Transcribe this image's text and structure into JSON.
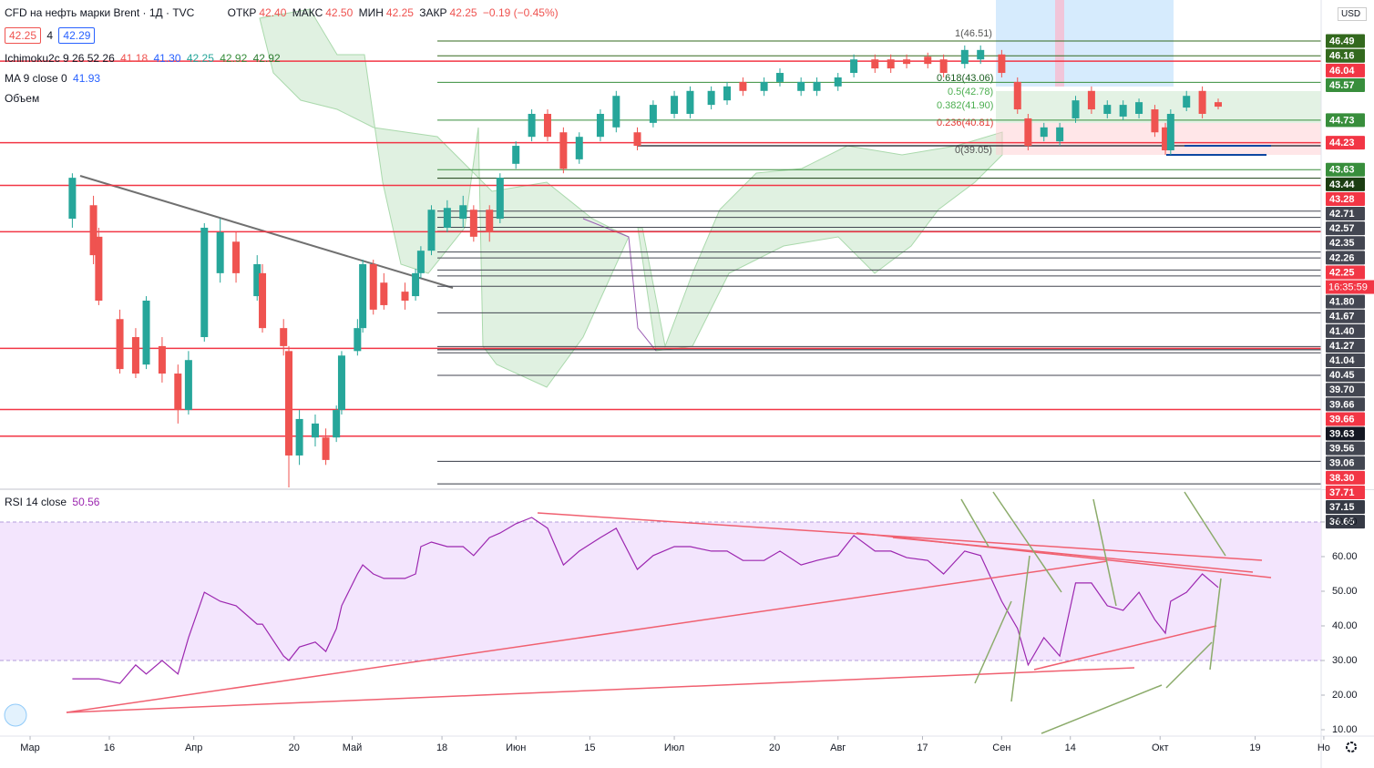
{
  "header": {
    "symbol": "CFD на нефть марки Brent · 1Д · TVC",
    "ohlc": [
      {
        "label": "ОТКР",
        "value": "42.40"
      },
      {
        "label": "МАКС",
        "value": "42.50"
      },
      {
        "label": "МИН",
        "value": "42.25"
      },
      {
        "label": "ЗАКР",
        "value": "42.25"
      }
    ],
    "change": "−0.19 (−0.45%)",
    "bid": "42.25",
    "spread": "4",
    "ask": "42.29"
  },
  "indicators": {
    "ichimoku": {
      "name": "Ichimoku2c 9 26 52 26",
      "values": [
        "41.18",
        "41.30",
        "42.25",
        "42.92",
        "42.92"
      ]
    },
    "ma": {
      "name": "MA 9 close 0",
      "value": "41.93"
    },
    "volume": "Объем",
    "rsi": {
      "name": "RSI 14 close",
      "value": "50.56"
    }
  },
  "currency": "USD",
  "fib_labels": [
    "1(46.51)",
    "0.618(43.06)",
    "0.5(42.78)",
    "0.382(41.90)",
    "0.236(40.81)",
    "0(39.05)"
  ],
  "chart_data": [
    {
      "type": "candlestick",
      "up_color": "#26a69a",
      "down_color": "#ef5350",
      "xlim": [
        -5.7,
        244.5
      ],
      "ylim": [
        36.53,
        47.4
      ],
      "xticks": [
        {
          "value": 0,
          "label": "Мар"
        },
        {
          "value": 15,
          "label": "16"
        },
        {
          "value": 31,
          "label": "Апр"
        },
        {
          "value": 50,
          "label": "20"
        },
        {
          "value": 61,
          "label": "Май"
        },
        {
          "value": 78,
          "label": "18"
        },
        {
          "value": 92,
          "label": "Июн"
        },
        {
          "value": 106,
          "label": "15"
        },
        {
          "value": 122,
          "label": "Июл"
        },
        {
          "value": 141,
          "label": "20"
        },
        {
          "value": 153,
          "label": "Авг"
        },
        {
          "value": 169,
          "label": "17"
        },
        {
          "value": 184,
          "label": "Сен"
        },
        {
          "value": 197,
          "label": "14"
        },
        {
          "value": 214,
          "label": "Окт"
        },
        {
          "value": 232,
          "label": "19"
        },
        {
          "value": 245,
          "label": "Но"
        }
      ],
      "x": [
        8,
        12,
        13,
        17,
        20,
        22,
        25,
        28,
        30,
        33,
        36,
        39,
        43,
        44,
        48,
        49,
        51,
        54,
        56,
        58,
        59,
        62,
        63,
        65,
        67,
        71,
        73,
        74,
        76,
        79,
        82,
        84,
        87,
        89,
        92,
        95,
        98,
        101,
        104,
        108,
        111,
        115,
        118,
        122,
        125,
        129,
        132,
        135,
        139,
        142,
        146,
        149,
        153,
        156,
        160,
        163,
        166,
        170,
        173,
        177,
        180,
        184,
        187,
        189,
        192,
        195,
        198,
        201,
        204,
        207,
        210,
        213,
        215,
        216,
        219,
        222,
        225
      ],
      "open": [
        42.54,
        42.84,
        42.14,
        40.31,
        39.91,
        39.3,
        39.71,
        39.1,
        38.29,
        39.91,
        41.33,
        42.03,
        40.82,
        41.33,
        40.11,
        39.6,
        37.28,
        37.68,
        37.68,
        37.68,
        38.29,
        39.6,
        40.11,
        41.53,
        41.12,
        40.92,
        40.82,
        41.33,
        41.83,
        42.34,
        42.54,
        42.74,
        42.74,
        42.54,
        43.76,
        44.36,
        44.87,
        44.46,
        43.86,
        44.36,
        44.57,
        44.46,
        44.67,
        44.87,
        44.87,
        45.07,
        45.17,
        45.58,
        45.38,
        45.58,
        45.38,
        45.38,
        45.48,
        45.78,
        46.08,
        46.08,
        46.08,
        46.14,
        46.08,
        45.98,
        46.08,
        46.19,
        45.58,
        44.77,
        44.36,
        44.26,
        44.77,
        45.38,
        44.87,
        44.81,
        44.87,
        44.97,
        44.57,
        44.06,
        45.01,
        45.38,
        45.13
      ],
      "high": [
        43.55,
        43.05,
        42.34,
        40.52,
        40.11,
        40.82,
        39.91,
        39.3,
        39.6,
        42.44,
        42.54,
        42.24,
        41.73,
        41.53,
        40.31,
        39.71,
        38.29,
        38.19,
        37.88,
        38.39,
        39.6,
        40.31,
        41.63,
        41.63,
        41.33,
        41.12,
        41.43,
        41.93,
        42.84,
        42.95,
        43.05,
        42.84,
        42.84,
        43.55,
        44.26,
        44.97,
        44.97,
        44.57,
        44.46,
        44.97,
        45.38,
        44.57,
        45.17,
        45.38,
        45.48,
        45.48,
        45.58,
        45.68,
        45.68,
        45.88,
        45.68,
        45.68,
        45.78,
        46.19,
        46.19,
        46.19,
        46.19,
        46.23,
        46.19,
        46.39,
        46.39,
        46.29,
        45.68,
        44.87,
        44.67,
        44.67,
        45.27,
        45.48,
        45.17,
        45.17,
        45.21,
        45.07,
        44.67,
        44.97,
        45.38,
        45.48,
        45.21
      ],
      "low": [
        42.34,
        41.53,
        40.62,
        39.1,
        39.0,
        39.2,
        38.9,
        37.99,
        38.19,
        39.81,
        41.12,
        41.12,
        40.72,
        40.01,
        39.5,
        36.57,
        37.07,
        37.48,
        37.07,
        37.58,
        38.19,
        39.5,
        40.01,
        40.41,
        40.52,
        40.52,
        40.72,
        41.22,
        41.73,
        42.24,
        42.34,
        42.03,
        42.03,
        42.44,
        43.65,
        44.26,
        44.26,
        43.55,
        43.76,
        44.26,
        44.46,
        44.06,
        44.57,
        44.77,
        44.77,
        44.97,
        45.07,
        45.27,
        45.27,
        45.48,
        45.27,
        45.27,
        45.38,
        45.68,
        45.78,
        45.78,
        45.88,
        45.88,
        45.68,
        45.88,
        45.98,
        45.68,
        44.87,
        44.06,
        44.26,
        44.16,
        44.67,
        44.87,
        44.77,
        44.73,
        44.77,
        44.36,
        43.96,
        43.96,
        44.93,
        44.77,
        44.97
      ],
      "close": [
        43.45,
        41.73,
        40.72,
        39.2,
        39.1,
        40.72,
        39.1,
        38.29,
        39.4,
        42.34,
        42.24,
        41.33,
        41.53,
        40.11,
        39.71,
        37.28,
        38.09,
        37.99,
        37.18,
        38.29,
        39.5,
        40.11,
        41.53,
        40.52,
        40.62,
        40.72,
        41.33,
        41.83,
        42.74,
        42.78,
        42.84,
        42.14,
        42.24,
        43.45,
        44.16,
        44.87,
        44.36,
        43.65,
        44.36,
        44.87,
        45.27,
        44.16,
        45.07,
        45.27,
        45.38,
        45.38,
        45.48,
        45.38,
        45.58,
        45.78,
        45.58,
        45.58,
        45.68,
        46.08,
        45.88,
        45.88,
        45.98,
        45.98,
        45.78,
        46.29,
        46.29,
        45.78,
        44.97,
        44.16,
        44.57,
        44.57,
        45.17,
        44.97,
        45.07,
        45.07,
        45.13,
        44.46,
        44.06,
        44.87,
        45.27,
        44.87,
        45.03
      ],
      "levels": [
        {
          "value": 46.49,
          "label": "46.49",
          "color": "#33691e"
        },
        {
          "value": 46.16,
          "label": "46.16",
          "color": "#33691e"
        },
        {
          "value": 46.04,
          "label": "46.04",
          "color": "#f23645"
        },
        {
          "value": 45.57,
          "label": "45.57",
          "color": "#388e3c"
        },
        {
          "value": 44.73,
          "label": "44.73",
          "color": "#388e3c"
        },
        {
          "value": 44.23,
          "label": "44.23",
          "color": "#f23645"
        },
        {
          "value": 43.63,
          "label": "43.63",
          "color": "#388e3c"
        },
        {
          "value": 43.44,
          "label": "43.44",
          "color": "#1b3d12"
        },
        {
          "value": 43.28,
          "label": "43.28",
          "color": "#f23645"
        },
        {
          "value": 42.71,
          "label": "42.71",
          "color": "#434651"
        },
        {
          "value": 42.57,
          "label": "42.57",
          "color": "#434651"
        },
        {
          "value": 42.35,
          "label": "42.35",
          "color": "#434651"
        },
        {
          "value": 42.26,
          "label": "42.26",
          "color": "#434651"
        },
        {
          "value": 42.25,
          "label": "42.25",
          "color": "#f23645"
        },
        {
          "value": 41.8,
          "label": "41.80",
          "color": "#434651"
        },
        {
          "value": 41.67,
          "label": "41.67",
          "color": "#434651"
        },
        {
          "value": 41.4,
          "label": "41.40",
          "color": "#434651"
        },
        {
          "value": 41.27,
          "label": "41.27",
          "color": "#434651"
        },
        {
          "value": 41.04,
          "label": "41.04",
          "color": "#434651"
        },
        {
          "value": 40.45,
          "label": "40.45",
          "color": "#434651"
        },
        {
          "value": 39.7,
          "label": "39.70",
          "color": "#434651"
        },
        {
          "value": 39.66,
          "label": "39.66",
          "color": "#434651"
        },
        {
          "value": 39.66,
          "label": "39.66",
          "color": "#f23645"
        },
        {
          "value": 39.63,
          "label": "39.63",
          "color": "#131722"
        },
        {
          "value": 39.56,
          "label": "39.56",
          "color": "#434651"
        },
        {
          "value": 39.06,
          "label": "39.06",
          "color": "#434651"
        },
        {
          "value": 38.3,
          "label": "38.30",
          "color": "#f23645"
        },
        {
          "value": 37.71,
          "label": "37.71",
          "color": "#f23645"
        },
        {
          "value": 37.15,
          "label": "37.15",
          "color": "#363a45"
        },
        {
          "value": 36.65,
          "label": "36.65",
          "color": "#363a45"
        }
      ],
      "countdown": "16:35:59"
    },
    {
      "type": "line",
      "color": "#9c27b0",
      "band_color": "#f3e5fd",
      "ylim": [
        8.16,
        79.2
      ],
      "band": [
        30,
        70
      ],
      "yticks": [
        {
          "value": 70,
          "label": "70.00"
        },
        {
          "value": 60,
          "label": "60.00"
        },
        {
          "value": 50,
          "label": "50.00"
        },
        {
          "value": 40,
          "label": "40.00"
        },
        {
          "value": 30,
          "label": "30.00"
        },
        {
          "value": 20,
          "label": "20.00"
        },
        {
          "value": 10,
          "label": "10.00"
        }
      ],
      "x": [
        8,
        12,
        13,
        17,
        20,
        22,
        25,
        28,
        30,
        33,
        36,
        39,
        43,
        44,
        48,
        49,
        51,
        54,
        56,
        58,
        59,
        62,
        63,
        65,
        67,
        71,
        73,
        74,
        76,
        79,
        82,
        84,
        87,
        89,
        92,
        95,
        98,
        101,
        104,
        108,
        111,
        115,
        118,
        122,
        125,
        129,
        132,
        135,
        139,
        142,
        146,
        149,
        153,
        156,
        160,
        163,
        166,
        170,
        173,
        177,
        180,
        184,
        187,
        189,
        192,
        195,
        198,
        201,
        204,
        207,
        210,
        213,
        215,
        216,
        219,
        222,
        225
      ],
      "values": [
        24.7,
        24.7,
        24.7,
        23.4,
        28.7,
        26.1,
        30.0,
        26.1,
        36.6,
        49.7,
        47.1,
        45.8,
        40.5,
        40.5,
        31.3,
        30.0,
        33.9,
        35.3,
        32.6,
        39.2,
        45.8,
        55.0,
        57.6,
        55.0,
        53.7,
        53.7,
        55.0,
        62.9,
        64.2,
        62.9,
        62.9,
        60.3,
        65.5,
        66.8,
        69.5,
        71.3,
        68.2,
        57.6,
        61.6,
        65.5,
        68.2,
        56.3,
        60.3,
        62.9,
        62.9,
        61.6,
        61.6,
        58.9,
        58.9,
        61.6,
        57.6,
        58.9,
        60.3,
        66.1,
        61.6,
        61.6,
        59.7,
        58.9,
        55.0,
        61.6,
        60.3,
        47.1,
        39.2,
        28.7,
        36.6,
        31.3,
        52.4,
        52.4,
        45.8,
        44.5,
        49.7,
        41.8,
        37.9,
        47.1,
        49.7,
        55.0,
        51.1
      ]
    }
  ]
}
